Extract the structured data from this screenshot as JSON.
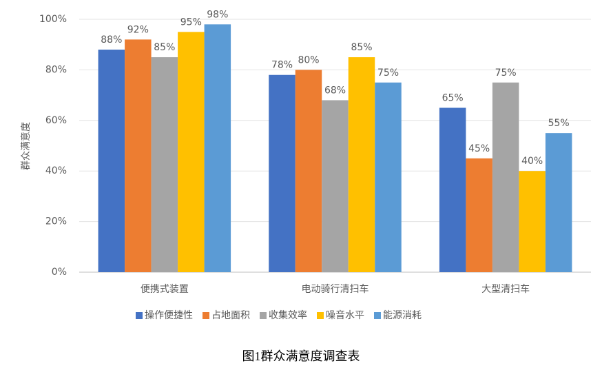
{
  "chart_data": {
    "type": "bar",
    "caption": "图1群众满意度调查表",
    "y_label": "群众满意度",
    "categories": [
      "便携式装置",
      "电动骑行清扫车",
      "大型清扫车"
    ],
    "series": [
      {
        "name": "操作便捷性",
        "color": "#4472c4",
        "values": [
          88,
          78,
          65
        ],
        "value_labels": [
          "88%",
          "78%",
          "65%"
        ]
      },
      {
        "name": "占地面积",
        "color": "#ed7d31",
        "values": [
          92,
          80,
          45
        ],
        "value_labels": [
          "92%",
          "80%",
          "45%"
        ]
      },
      {
        "name": "收集效率",
        "color": "#a5a5a5",
        "values": [
          85,
          68,
          75
        ],
        "value_labels": [
          "85%",
          "68%",
          "75%"
        ]
      },
      {
        "name": "噪音水平",
        "color": "#ffc000",
        "values": [
          95,
          85,
          40
        ],
        "value_labels": [
          "95%",
          "85%",
          "40%"
        ]
      },
      {
        "name": "能源消耗",
        "color": "#5b9bd5",
        "values": [
          98,
          75,
          55
        ],
        "value_labels": [
          "98%",
          "75%",
          "55%"
        ]
      }
    ],
    "ylim": [
      0,
      100
    ],
    "yticks": [
      {
        "value": 0,
        "label": "0%"
      },
      {
        "value": 20,
        "label": "20%"
      },
      {
        "value": 40,
        "label": "40%"
      },
      {
        "value": 60,
        "label": "60%"
      },
      {
        "value": 80,
        "label": "80%"
      },
      {
        "value": 100,
        "label": "100%"
      }
    ],
    "grid": true,
    "legend": "bottom"
  }
}
